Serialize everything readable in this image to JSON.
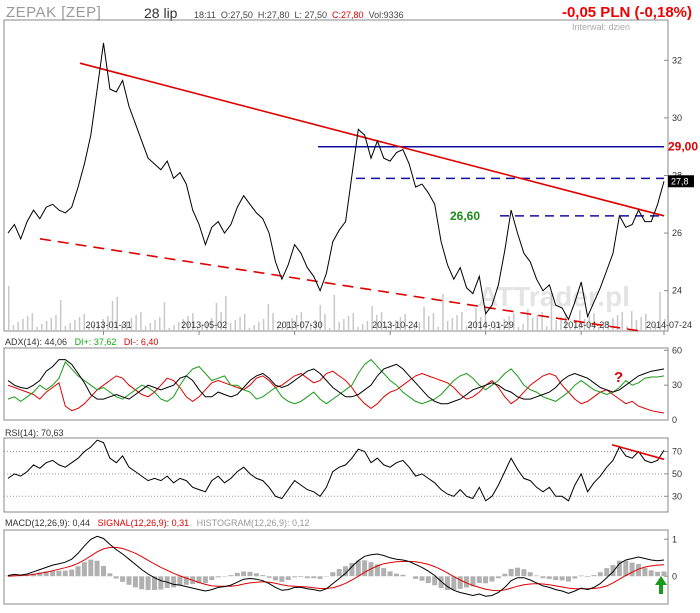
{
  "header": {
    "ticker": "ZEPAK [ZEP]",
    "date": "28 lip",
    "time": "18:11",
    "open": "O:27,50",
    "high": "H:27,80",
    "low": "L: 27,50",
    "close": "C:27,80",
    "volume": "Vol:9336",
    "change": "-0,05 PLN (-0,18%)",
    "interval": "Interwał: dzień"
  },
  "watermark": "ATTrader.pl",
  "colors": {
    "price": "#000000",
    "trend": "#e00000",
    "level": "#1010a0",
    "di_plus": "#1a9a1a",
    "di_minus": "#e00000",
    "grid": "#cccccc",
    "histogram": "#b0b0b0",
    "arrow": "#1a9a1a"
  },
  "chart_data": [
    {
      "type": "line",
      "panel": "price",
      "x_ticks": [
        "2013-01-31",
        "2013-05-02",
        "2013-07-30",
        "2013-10-24",
        "2014-01-29",
        "2014-04-28",
        "2014-07-24"
      ],
      "y_ticks": [
        "32",
        "30",
        "28",
        "26",
        "24"
      ],
      "ylim": [
        22.6,
        33.4
      ],
      "last_value": "27,8",
      "annotations": [
        {
          "text": "29,00",
          "value": 29.0,
          "color": "#e00000"
        },
        {
          "text": "26,60",
          "value": 26.6,
          "color": "#1a8a1a"
        }
      ],
      "series": [
        {
          "values": [
            26.0,
            26.3,
            25.8,
            26.4,
            26.8,
            26.5,
            26.9,
            27.0,
            26.8,
            26.7,
            26.9,
            27.6,
            28.4,
            29.4,
            31.0,
            32.6,
            31.0,
            30.9,
            31.3,
            30.4,
            29.8,
            29.2,
            28.6,
            28.4,
            28.2,
            28.5,
            27.9,
            28.1,
            27.7,
            26.8,
            26.3,
            25.6,
            26.2,
            26.4,
            26.0,
            26.3,
            26.9,
            27.3,
            27.0,
            26.7,
            26.5,
            26.0,
            25.0,
            24.4,
            24.9,
            25.6,
            25.3,
            24.8,
            24.5,
            24.0,
            24.6,
            25.7,
            26.1,
            26.4,
            28.0,
            29.6,
            29.4,
            28.6,
            29.2,
            28.6,
            28.5,
            28.8,
            28.9,
            28.4,
            27.6,
            27.7,
            27.4,
            27.0,
            25.7,
            24.9,
            24.4,
            24.8,
            24.1,
            23.9,
            24.5,
            23.2,
            23.5,
            24.2,
            25.4,
            26.8,
            26.0,
            25.3,
            25.0,
            24.4,
            24.0,
            24.2,
            23.5,
            23.4,
            23.0,
            23.6,
            24.3,
            23.1,
            23.6,
            24.1,
            24.7,
            25.3,
            26.6,
            26.2,
            26.3,
            26.8,
            26.4,
            26.4,
            27.0,
            27.8
          ]
        }
      ]
    },
    {
      "type": "line",
      "panel": "adx",
      "title": "ADX(14): 44,06",
      "legend": [
        "DI+: 37,62",
        "DI-: 6,40"
      ],
      "y_ticks": [
        "60",
        "30",
        "0"
      ],
      "ylim": [
        0,
        62
      ],
      "annotation": "?",
      "series": [
        {
          "name": "ADX",
          "values": [
            34,
            30,
            28,
            27,
            30,
            34,
            42,
            46,
            52,
            52,
            48,
            40,
            32,
            22,
            18,
            18,
            20,
            22,
            20,
            18,
            22,
            26,
            30,
            28,
            26,
            28,
            30,
            36,
            38,
            34,
            26,
            20,
            20,
            24,
            22,
            20,
            22,
            28,
            34,
            38,
            40,
            36,
            30,
            28,
            30,
            34,
            38,
            42,
            44,
            40,
            34,
            28,
            24,
            20,
            20,
            22,
            26,
            30,
            38,
            44,
            46,
            48,
            44,
            38,
            32,
            26,
            20,
            16,
            14,
            14,
            16,
            18,
            22,
            26,
            28,
            30,
            32,
            30,
            26,
            24,
            20,
            18,
            18,
            20,
            22,
            24,
            28,
            34,
            38,
            40,
            38,
            36,
            32,
            28,
            26,
            24,
            26,
            30,
            34,
            38,
            40,
            42,
            43,
            44
          ]
        },
        {
          "name": "DI+",
          "values": [
            18,
            20,
            16,
            20,
            24,
            30,
            26,
            30,
            36,
            50,
            44,
            38,
            34,
            30,
            26,
            28,
            24,
            20,
            18,
            22,
            26,
            30,
            28,
            24,
            18,
            16,
            20,
            30,
            38,
            44,
            46,
            40,
            34,
            36,
            38,
            30,
            30,
            26,
            24,
            18,
            20,
            24,
            28,
            20,
            16,
            14,
            16,
            20,
            24,
            18,
            14,
            18,
            22,
            26,
            30,
            40,
            48,
            52,
            46,
            40,
            34,
            30,
            24,
            20,
            16,
            14,
            16,
            18,
            22,
            28,
            34,
            38,
            40,
            36,
            30,
            26,
            30,
            34,
            40,
            44,
            38,
            30,
            26,
            24,
            20,
            18,
            16,
            20,
            24,
            30,
            34,
            30,
            26,
            24,
            22,
            24,
            28,
            34,
            30,
            32,
            36,
            37,
            37,
            38
          ]
        },
        {
          "name": "DI-",
          "values": [
            30,
            28,
            26,
            24,
            22,
            18,
            24,
            28,
            32,
            12,
            8,
            10,
            14,
            20,
            26,
            30,
            34,
            38,
            36,
            30,
            26,
            22,
            20,
            24,
            30,
            36,
            34,
            28,
            20,
            16,
            20,
            26,
            32,
            34,
            32,
            30,
            28,
            26,
            30,
            36,
            38,
            34,
            28,
            30,
            34,
            38,
            40,
            36,
            32,
            34,
            40,
            42,
            38,
            34,
            28,
            20,
            14,
            10,
            14,
            20,
            24,
            26,
            30,
            34,
            38,
            40,
            38,
            36,
            34,
            32,
            28,
            22,
            18,
            20,
            24,
            30,
            34,
            28,
            20,
            14,
            18,
            24,
            30,
            34,
            38,
            40,
            38,
            30,
            24,
            18,
            14,
            16,
            20,
            24,
            26,
            22,
            18,
            14,
            16,
            12,
            10,
            8,
            7,
            6
          ]
        }
      ]
    },
    {
      "type": "line",
      "panel": "rsi",
      "title": "RSI(14): 70,63",
      "y_ticks": [
        "70",
        "50",
        "30"
      ],
      "ylim": [
        16,
        82
      ],
      "series": [
        {
          "values": [
            46,
            50,
            48,
            52,
            58,
            55,
            60,
            62,
            58,
            56,
            60,
            64,
            70,
            74,
            80,
            78,
            64,
            60,
            66,
            56,
            52,
            48,
            44,
            46,
            44,
            48,
            42,
            46,
            44,
            38,
            36,
            34,
            44,
            48,
            42,
            46,
            52,
            56,
            50,
            46,
            44,
            38,
            30,
            28,
            36,
            44,
            40,
            36,
            34,
            30,
            38,
            52,
            56,
            58,
            64,
            72,
            70,
            60,
            64,
            58,
            56,
            60,
            62,
            56,
            48,
            50,
            46,
            42,
            36,
            32,
            30,
            36,
            30,
            28,
            38,
            26,
            30,
            40,
            52,
            64,
            54,
            46,
            44,
            38,
            34,
            38,
            30,
            30,
            26,
            40,
            50,
            34,
            42,
            48,
            56,
            62,
            74,
            66,
            64,
            70,
            62,
            60,
            62,
            71
          ]
        }
      ]
    },
    {
      "type": "line",
      "panel": "macd",
      "title": "MACD(12,26,9): 0,44",
      "legend": [
        "SIGNAL(12,26,9): 0,31",
        "HISTOGRAM(12,26,9): 0,12"
      ],
      "y_ticks": [
        "1",
        "0"
      ],
      "ylim": [
        -0.75,
        1.25
      ],
      "series": [
        {
          "name": "MACD",
          "values": [
            0.02,
            0.05,
            0.03,
            0.06,
            0.12,
            0.18,
            0.24,
            0.3,
            0.34,
            0.38,
            0.46,
            0.62,
            0.82,
            1.0,
            1.08,
            1.02,
            0.86,
            0.72,
            0.6,
            0.46,
            0.32,
            0.18,
            0.06,
            -0.04,
            -0.12,
            -0.16,
            -0.22,
            -0.24,
            -0.28,
            -0.32,
            -0.36,
            -0.4,
            -0.36,
            -0.3,
            -0.28,
            -0.24,
            -0.16,
            -0.08,
            -0.06,
            -0.08,
            -0.12,
            -0.2,
            -0.3,
            -0.38,
            -0.36,
            -0.3,
            -0.3,
            -0.34,
            -0.36,
            -0.4,
            -0.34,
            -0.2,
            -0.06,
            0.08,
            0.26,
            0.42,
            0.54,
            0.58,
            0.6,
            0.56,
            0.5,
            0.46,
            0.44,
            0.4,
            0.32,
            0.24,
            0.14,
            0.02,
            -0.14,
            -0.28,
            -0.38,
            -0.44,
            -0.48,
            -0.52,
            -0.48,
            -0.54,
            -0.52,
            -0.44,
            -0.3,
            -0.12,
            -0.04,
            -0.04,
            -0.1,
            -0.18,
            -0.26,
            -0.3,
            -0.36,
            -0.4,
            -0.46,
            -0.4,
            -0.32,
            -0.36,
            -0.3,
            -0.2,
            -0.04,
            0.12,
            0.34,
            0.44,
            0.48,
            0.52,
            0.48,
            0.44,
            0.42,
            0.44
          ]
        },
        {
          "name": "SIGNAL",
          "values": [
            0.0,
            0.01,
            0.02,
            0.03,
            0.05,
            0.08,
            0.11,
            0.15,
            0.19,
            0.23,
            0.28,
            0.35,
            0.44,
            0.55,
            0.66,
            0.74,
            0.78,
            0.78,
            0.75,
            0.69,
            0.62,
            0.53,
            0.43,
            0.33,
            0.24,
            0.16,
            0.08,
            0.01,
            -0.05,
            -0.11,
            -0.17,
            -0.22,
            -0.26,
            -0.27,
            -0.27,
            -0.27,
            -0.25,
            -0.21,
            -0.18,
            -0.16,
            -0.15,
            -0.16,
            -0.19,
            -0.23,
            -0.26,
            -0.27,
            -0.28,
            -0.29,
            -0.31,
            -0.33,
            -0.33,
            -0.31,
            -0.26,
            -0.19,
            -0.1,
            0.0,
            0.11,
            0.2,
            0.28,
            0.34,
            0.37,
            0.39,
            0.4,
            0.4,
            0.39,
            0.36,
            0.32,
            0.26,
            0.18,
            0.09,
            -0.01,
            -0.1,
            -0.18,
            -0.25,
            -0.3,
            -0.35,
            -0.38,
            -0.39,
            -0.37,
            -0.32,
            -0.27,
            -0.23,
            -0.21,
            -0.2,
            -0.21,
            -0.23,
            -0.26,
            -0.29,
            -0.32,
            -0.34,
            -0.34,
            -0.34,
            -0.33,
            -0.31,
            -0.26,
            -0.18,
            -0.08,
            0.02,
            0.11,
            0.19,
            0.25,
            0.28,
            0.3,
            0.31
          ]
        }
      ]
    }
  ]
}
